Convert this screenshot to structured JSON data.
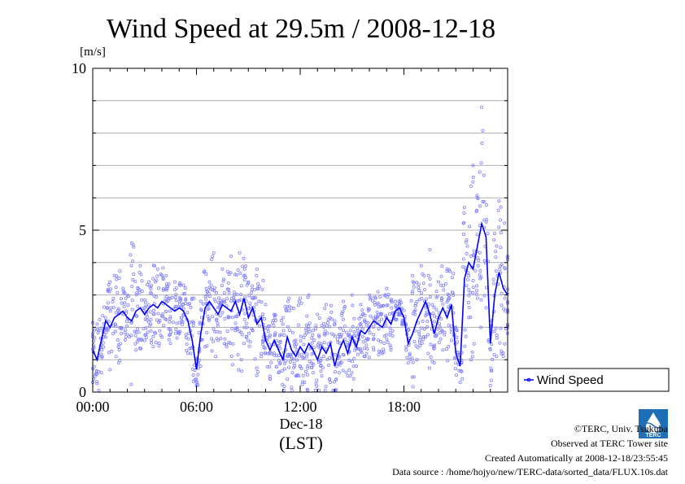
{
  "chart_data": {
    "type": "line",
    "title": "Wind Speed at 29.5m / 2008-12-18",
    "ylabel": "[m/s]",
    "xlabel": "(LST)",
    "date_label": "Dec-18",
    "ylim": [
      0,
      10
    ],
    "xlim_hours": [
      0,
      24
    ],
    "y_ticks": [
      "0",
      "5",
      "10"
    ],
    "y_tick_values": [
      0,
      5,
      10
    ],
    "x_ticks": [
      "00:00",
      "06:00",
      "12:00",
      "18:00"
    ],
    "x_tick_values": [
      0,
      6,
      12,
      18
    ],
    "grid": true,
    "legend": "right",
    "colors": {
      "line": "#0000ff",
      "points": "#8080ff",
      "grid": "#b0b0b0",
      "axis": "#000000"
    },
    "series": [
      {
        "name": "Wind Speed",
        "x_hours": [
          0,
          0.25,
          0.5,
          0.75,
          1,
          1.25,
          1.5,
          1.75,
          2,
          2.25,
          2.5,
          2.75,
          3,
          3.25,
          3.5,
          3.75,
          4,
          4.25,
          4.5,
          4.75,
          5,
          5.25,
          5.5,
          5.75,
          6,
          6.25,
          6.5,
          6.75,
          7,
          7.25,
          7.5,
          7.75,
          8,
          8.25,
          8.5,
          8.75,
          9,
          9.25,
          9.5,
          9.75,
          10,
          10.25,
          10.5,
          10.75,
          11,
          11.25,
          11.5,
          11.75,
          12,
          12.25,
          12.5,
          12.75,
          13,
          13.25,
          13.5,
          13.75,
          14,
          14.25,
          14.5,
          14.75,
          15,
          15.25,
          15.5,
          15.75,
          16,
          16.25,
          16.5,
          16.75,
          17,
          17.25,
          17.5,
          17.75,
          18,
          18.25,
          18.5,
          18.75,
          19,
          19.25,
          19.5,
          19.75,
          20,
          20.25,
          20.5,
          20.75,
          21,
          21.25,
          21.5,
          21.75,
          22,
          22.25,
          22.5,
          22.75,
          23,
          23.25,
          23.5,
          23.75,
          24
        ],
        "values": [
          1.3,
          1.0,
          1.6,
          2.2,
          2.0,
          2.3,
          2.4,
          2.5,
          2.3,
          2.2,
          2.5,
          2.6,
          2.4,
          2.6,
          2.7,
          2.6,
          2.8,
          2.7,
          2.6,
          2.5,
          2.6,
          2.5,
          2.2,
          1.6,
          0.7,
          1.8,
          2.6,
          2.8,
          2.6,
          2.4,
          2.7,
          2.6,
          2.5,
          2.8,
          2.4,
          2.9,
          2.3,
          2.6,
          2.1,
          2.3,
          1.6,
          1.3,
          1.6,
          1.3,
          1.0,
          1.7,
          1.3,
          1.1,
          1.4,
          1.2,
          1.5,
          1.3,
          1.0,
          1.4,
          1.2,
          1.5,
          0.8,
          1.3,
          1.6,
          1.2,
          1.7,
          1.4,
          1.9,
          1.8,
          2.0,
          2.2,
          2.1,
          2.0,
          2.3,
          2.1,
          2.5,
          2.6,
          2.3,
          1.5,
          1.8,
          2.2,
          2.5,
          2.8,
          2.4,
          1.8,
          2.3,
          2.6,
          2.3,
          2.7,
          1.2,
          0.8,
          3.5,
          4.0,
          3.8,
          4.5,
          5.2,
          4.8,
          1.5,
          3.0,
          3.7,
          3.2,
          3.0
        ],
        "points_y": [
          0.3,
          2.1,
          0.6,
          1.7,
          3.4,
          3.6,
          0.9,
          3.2,
          3.0,
          4.6,
          1.3,
          3.9,
          1.6,
          3.4,
          1.4,
          3.8,
          1.7,
          3.6,
          1.5,
          3.4,
          1.8,
          3.3,
          1.2,
          2.9,
          0.2,
          2.8,
          1.4,
          3.4,
          4.3,
          1.6,
          3.8,
          1.4,
          4.2,
          1.9,
          4.3,
          1.5,
          3.4,
          1.9,
          3.8,
          1.1,
          2.7,
          0.4,
          2.4,
          0.6,
          2.3,
          0.4,
          2.6,
          0.5,
          2.9,
          0.3,
          3.0,
          0.6,
          2.4,
          0.5,
          2.7,
          0.3,
          2.2,
          0.6,
          2.8,
          0.5,
          3.0,
          0.8,
          2.7,
          1.1,
          3.0,
          1.3,
          3.1,
          1.2,
          3.2,
          1.3,
          2.8,
          2.7,
          2.1,
          0.9,
          3.6,
          1.0,
          3.9,
          1.7,
          4.4,
          0.9,
          3.4,
          1.3,
          3.8,
          1.6,
          2.0,
          0.3,
          5.7,
          2.3,
          7.0,
          2.9,
          8.8,
          2.6,
          0.2,
          4.9,
          5.9,
          1.1,
          4.2
        ]
      }
    ]
  },
  "credits": {
    "copyright": "©TERC, Univ. Tsukuba",
    "observed": "Observed at TERC Tower site",
    "created": "Created Automatically at 2008-12-18/23:55:45",
    "source": "Data source : /home/hojyo/new/TERC-data/sorted_data/FLUX.10s.dat"
  },
  "logo": {
    "text": "TERC",
    "color": "#1f6fb8"
  }
}
